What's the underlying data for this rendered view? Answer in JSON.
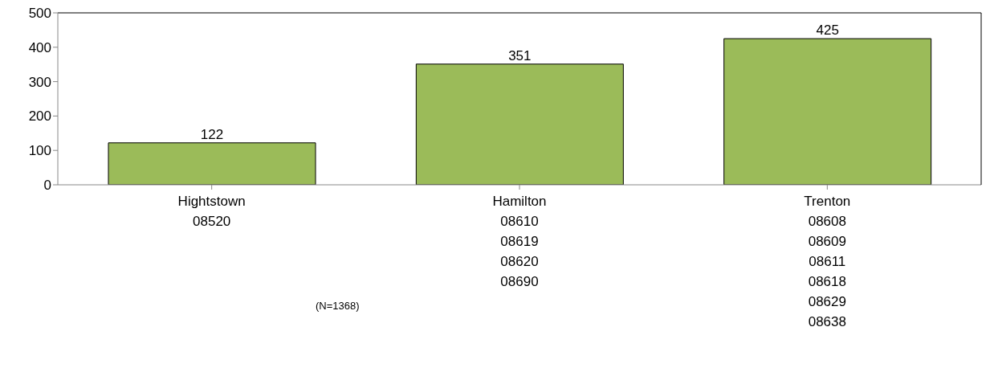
{
  "chart_data": {
    "type": "bar",
    "categories": [
      "Hightstown\n08520",
      "Hamilton\n08610\n08619\n08620\n08690",
      "Trenton\n08608\n08609\n08611\n08618\n08629\n08638"
    ],
    "values": [
      122,
      351,
      425
    ],
    "color": "#9bbb59",
    "ylim": [
      0,
      500
    ],
    "yticks": [
      0,
      100,
      200,
      300,
      400,
      500
    ],
    "grid": false,
    "data_labels": true,
    "annotations": [
      "(N=1368)"
    ]
  }
}
